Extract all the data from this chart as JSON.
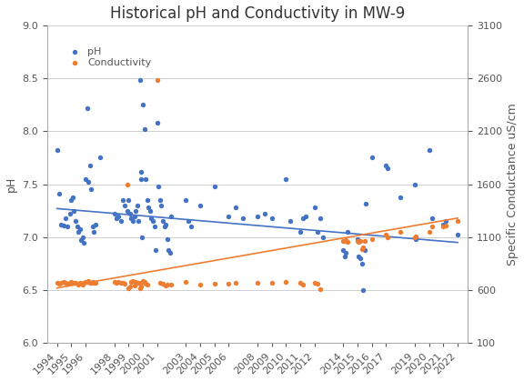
{
  "title": "Historical pH and Conductivity in MW-9",
  "ylabel_left": "pH",
  "ylabel_right": "Specific Conductance uS/cm",
  "ylim_left": [
    6,
    9
  ],
  "ylim_right": [
    100,
    3100
  ],
  "yticks_left": [
    6,
    6.5,
    7,
    7.5,
    8,
    8.5,
    9
  ],
  "yticks_right": [
    100,
    600,
    1100,
    1600,
    2100,
    2600,
    3100
  ],
  "xtick_labels": [
    "1994",
    "1995",
    "1996",
    "1998",
    "1999",
    "2000",
    "2001",
    "2003",
    "2004",
    "2005",
    "2006",
    "2008",
    "2009",
    "2010",
    "2011",
    "2012",
    "2014",
    "2015",
    "2016",
    "2017",
    "2019",
    "2020",
    "2021",
    "2022"
  ],
  "ph_color": "#4472C4",
  "cond_color": "#ED7D31",
  "ph_data": [
    [
      1994.0,
      7.82
    ],
    [
      1994.15,
      7.41
    ],
    [
      1994.3,
      7.12
    ],
    [
      1994.45,
      7.11
    ],
    [
      1994.6,
      7.18
    ],
    [
      1994.75,
      7.1
    ],
    [
      1994.9,
      7.22
    ],
    [
      1995.0,
      7.35
    ],
    [
      1995.1,
      7.38
    ],
    [
      1995.2,
      7.25
    ],
    [
      1995.3,
      7.15
    ],
    [
      1995.4,
      7.1
    ],
    [
      1995.5,
      7.05
    ],
    [
      1995.6,
      7.08
    ],
    [
      1995.7,
      6.97
    ],
    [
      1995.8,
      7.0
    ],
    [
      1995.9,
      6.95
    ],
    [
      1996.0,
      7.55
    ],
    [
      1996.1,
      8.22
    ],
    [
      1996.2,
      7.52
    ],
    [
      1996.3,
      7.68
    ],
    [
      1996.4,
      7.45
    ],
    [
      1996.5,
      7.1
    ],
    [
      1996.6,
      7.05
    ],
    [
      1996.7,
      7.12
    ],
    [
      1997.0,
      7.75
    ],
    [
      1998.0,
      7.22
    ],
    [
      1998.15,
      7.18
    ],
    [
      1998.3,
      7.2
    ],
    [
      1998.45,
      7.15
    ],
    [
      1998.6,
      7.35
    ],
    [
      1998.75,
      7.3
    ],
    [
      1998.9,
      7.25
    ],
    [
      1999.0,
      7.35
    ],
    [
      1999.1,
      7.22
    ],
    [
      1999.2,
      7.18
    ],
    [
      1999.3,
      7.15
    ],
    [
      1999.4,
      7.2
    ],
    [
      1999.5,
      7.25
    ],
    [
      1999.6,
      7.3
    ],
    [
      1999.7,
      7.15
    ],
    [
      1999.8,
      8.48
    ],
    [
      1999.85,
      7.62
    ],
    [
      1999.9,
      7.55
    ],
    [
      1999.95,
      7.0
    ],
    [
      2000.0,
      8.25
    ],
    [
      2000.1,
      8.02
    ],
    [
      2000.2,
      7.55
    ],
    [
      2000.3,
      7.35
    ],
    [
      2000.4,
      7.28
    ],
    [
      2000.5,
      7.25
    ],
    [
      2000.6,
      7.18
    ],
    [
      2000.7,
      7.15
    ],
    [
      2000.8,
      7.1
    ],
    [
      2000.9,
      6.88
    ],
    [
      2001.0,
      8.08
    ],
    [
      2001.1,
      7.48
    ],
    [
      2001.2,
      7.35
    ],
    [
      2001.3,
      7.3
    ],
    [
      2001.4,
      7.15
    ],
    [
      2001.5,
      7.1
    ],
    [
      2001.6,
      7.12
    ],
    [
      2001.7,
      6.98
    ],
    [
      2001.8,
      6.88
    ],
    [
      2001.9,
      6.85
    ],
    [
      2002.0,
      7.2
    ],
    [
      2003.0,
      7.35
    ],
    [
      2003.2,
      7.15
    ],
    [
      2003.4,
      7.1
    ],
    [
      2004.0,
      7.3
    ],
    [
      2005.0,
      7.48
    ],
    [
      2006.0,
      7.2
    ],
    [
      2006.5,
      7.28
    ],
    [
      2007.0,
      7.18
    ],
    [
      2008.0,
      7.2
    ],
    [
      2008.5,
      7.22
    ],
    [
      2009.0,
      7.18
    ],
    [
      2010.0,
      7.55
    ],
    [
      2010.3,
      7.15
    ],
    [
      2011.0,
      7.05
    ],
    [
      2011.2,
      7.18
    ],
    [
      2011.4,
      7.2
    ],
    [
      2012.0,
      7.28
    ],
    [
      2012.2,
      7.05
    ],
    [
      2012.4,
      7.18
    ],
    [
      2012.6,
      7.0
    ],
    [
      2014.0,
      6.88
    ],
    [
      2014.1,
      6.82
    ],
    [
      2014.2,
      6.85
    ],
    [
      2014.3,
      7.05
    ],
    [
      2015.0,
      6.98
    ],
    [
      2015.1,
      6.82
    ],
    [
      2015.2,
      6.8
    ],
    [
      2015.3,
      6.75
    ],
    [
      2015.4,
      6.5
    ],
    [
      2015.5,
      6.88
    ],
    [
      2015.6,
      7.32
    ],
    [
      2016.0,
      7.75
    ],
    [
      2017.0,
      7.68
    ],
    [
      2017.1,
      7.65
    ],
    [
      2018.0,
      7.38
    ],
    [
      2019.0,
      7.5
    ],
    [
      2019.1,
      6.98
    ],
    [
      2020.0,
      7.82
    ],
    [
      2020.2,
      7.18
    ],
    [
      2021.0,
      7.12
    ],
    [
      2021.2,
      7.15
    ],
    [
      2022.0,
      7.02
    ]
  ],
  "cond_data": [
    [
      1994.0,
      670
    ],
    [
      1994.15,
      660
    ],
    [
      1994.3,
      670
    ],
    [
      1994.45,
      680
    ],
    [
      1994.6,
      665
    ],
    [
      1994.75,
      658
    ],
    [
      1994.9,
      670
    ],
    [
      1995.0,
      680
    ],
    [
      1995.1,
      672
    ],
    [
      1995.2,
      665
    ],
    [
      1995.3,
      670
    ],
    [
      1995.4,
      662
    ],
    [
      1995.5,
      655
    ],
    [
      1995.6,
      668
    ],
    [
      1995.7,
      658
    ],
    [
      1995.8,
      650
    ],
    [
      1995.9,
      672
    ],
    [
      1996.0,
      680
    ],
    [
      1996.1,
      675
    ],
    [
      1996.2,
      682
    ],
    [
      1996.3,
      668
    ],
    [
      1996.4,
      672
    ],
    [
      1996.5,
      680
    ],
    [
      1996.6,
      670
    ],
    [
      1996.7,
      665
    ],
    [
      1998.0,
      680
    ],
    [
      1998.15,
      672
    ],
    [
      1998.3,
      675
    ],
    [
      1998.45,
      668
    ],
    [
      1998.6,
      670
    ],
    [
      1998.75,
      662
    ],
    [
      1998.9,
      1600
    ],
    [
      1999.0,
      620
    ],
    [
      1999.1,
      635
    ],
    [
      1999.2,
      680
    ],
    [
      1999.3,
      685
    ],
    [
      1999.4,
      640
    ],
    [
      1999.5,
      675
    ],
    [
      1999.6,
      670
    ],
    [
      1999.7,
      665
    ],
    [
      1999.8,
      615
    ],
    [
      1999.85,
      672
    ],
    [
      1999.9,
      635
    ],
    [
      2000.0,
      685
    ],
    [
      2000.1,
      680
    ],
    [
      2000.2,
      662
    ],
    [
      2000.3,
      650
    ],
    [
      2001.0,
      2580
    ],
    [
      2001.2,
      668
    ],
    [
      2001.4,
      658
    ],
    [
      2001.6,
      645
    ],
    [
      2001.7,
      650
    ],
    [
      2002.0,
      650
    ],
    [
      2003.0,
      680
    ],
    [
      2004.0,
      650
    ],
    [
      2005.0,
      662
    ],
    [
      2006.0,
      662
    ],
    [
      2006.5,
      670
    ],
    [
      2008.0,
      670
    ],
    [
      2009.0,
      668
    ],
    [
      2010.0,
      680
    ],
    [
      2011.0,
      672
    ],
    [
      2011.2,
      655
    ],
    [
      2012.0,
      672
    ],
    [
      2012.2,
      662
    ],
    [
      2012.4,
      612
    ],
    [
      2014.0,
      1060
    ],
    [
      2014.1,
      1065
    ],
    [
      2014.2,
      1070
    ],
    [
      2014.3,
      1058
    ],
    [
      2015.0,
      1060
    ],
    [
      2015.1,
      1058
    ],
    [
      2015.2,
      1062
    ],
    [
      2015.3,
      990
    ],
    [
      2015.4,
      1000
    ],
    [
      2015.5,
      1060
    ],
    [
      2016.0,
      1080
    ],
    [
      2017.0,
      1120
    ],
    [
      2017.1,
      1100
    ],
    [
      2018.0,
      1150
    ],
    [
      2019.0,
      1100
    ],
    [
      2019.1,
      1110
    ],
    [
      2020.0,
      1150
    ],
    [
      2020.2,
      1200
    ],
    [
      2021.0,
      1200
    ],
    [
      2021.2,
      1210
    ],
    [
      2022.0,
      1250
    ]
  ],
  "ph_trend_x": [
    1994,
    2022
  ],
  "ph_trend_y": [
    7.27,
    6.95
  ],
  "cond_trend_x": [
    1994,
    2022
  ],
  "cond_trend_y": [
    620,
    1280
  ],
  "background_color": "#ffffff",
  "grid_color": "#c8c8c8",
  "marker_size": 15,
  "title_fontsize": 12,
  "axis_label_fontsize": 9,
  "tick_fontsize": 8,
  "xlim": [
    1993.3,
    2022.7
  ],
  "legend_fontsize": 8
}
